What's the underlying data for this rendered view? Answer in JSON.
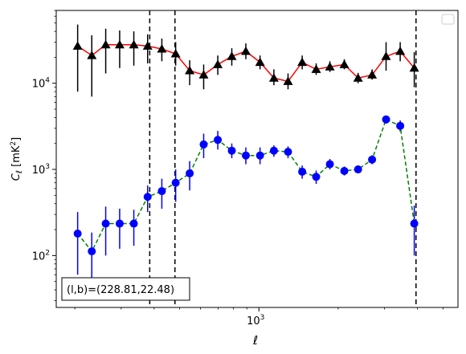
{
  "chart_data": {
    "type": "scatter",
    "xlabel": "ℓ",
    "ylabel_main": "C",
    "ylabel_sub": "ℓ",
    "ylabel_unit_pre": "[mK",
    "ylabel_unit_sup": "2",
    "ylabel_unit_post": "]",
    "xscale": "log",
    "yscale": "log",
    "xlim": [
      170,
      5700
    ],
    "ylim": [
      25,
      70000
    ],
    "xticks": [
      {
        "value": 1000,
        "base": "10",
        "exp": "3"
      }
    ],
    "yticks": [
      {
        "value": 100,
        "base": "10",
        "exp": "2"
      },
      {
        "value": 1000,
        "base": "10",
        "exp": "3"
      },
      {
        "value": 10000,
        "base": "10",
        "exp": "4"
      }
    ],
    "vlines": [
      385,
      480,
      3950
    ],
    "annotation": "(l,b)=(228.81,22.48)",
    "legend_location": "top-right",
    "series": [
      {
        "marker": "triangle",
        "marker_color": "#000000",
        "line_color": "#ff0000",
        "line_style": "solid",
        "errorbar_color": "#000000",
        "points": [
          {
            "x": 205,
            "y": 27000,
            "lo": 8000,
            "hi": 48000
          },
          {
            "x": 232,
            "y": 21000,
            "lo": 7000,
            "hi": 36000
          },
          {
            "x": 262,
            "y": 28000,
            "lo": 13000,
            "hi": 43000
          },
          {
            "x": 296,
            "y": 28000,
            "lo": 15000,
            "hi": 41000
          },
          {
            "x": 335,
            "y": 28000,
            "lo": 16000,
            "hi": 40000
          },
          {
            "x": 378,
            "y": 27000,
            "lo": 17000,
            "hi": 37000
          },
          {
            "x": 428,
            "y": 25000,
            "lo": 18000,
            "hi": 33000
          },
          {
            "x": 483,
            "y": 22000,
            "lo": 16000,
            "hi": 30000
          },
          {
            "x": 546,
            "y": 14000,
            "lo": 9500,
            "hi": 18500
          },
          {
            "x": 617,
            "y": 12500,
            "lo": 8500,
            "hi": 16500
          },
          {
            "x": 698,
            "y": 16500,
            "lo": 12500,
            "hi": 21000
          },
          {
            "x": 789,
            "y": 20500,
            "lo": 16000,
            "hi": 25500
          },
          {
            "x": 892,
            "y": 23500,
            "lo": 19000,
            "hi": 29000
          },
          {
            "x": 1010,
            "y": 17500,
            "lo": 14500,
            "hi": 21000
          },
          {
            "x": 1140,
            "y": 11500,
            "lo": 9500,
            "hi": 14500
          },
          {
            "x": 1290,
            "y": 10500,
            "lo": 8500,
            "hi": 13000
          },
          {
            "x": 1460,
            "y": 17500,
            "lo": 14500,
            "hi": 21000
          },
          {
            "x": 1650,
            "y": 14500,
            "lo": 12500,
            "hi": 17000
          },
          {
            "x": 1860,
            "y": 15500,
            "lo": 13500,
            "hi": 18000
          },
          {
            "x": 2110,
            "y": 16500,
            "lo": 14500,
            "hi": 19000
          },
          {
            "x": 2380,
            "y": 11500,
            "lo": 10000,
            "hi": 13200
          },
          {
            "x": 2690,
            "y": 12500,
            "lo": 11000,
            "hi": 14500
          },
          {
            "x": 3040,
            "y": 20500,
            "lo": 14000,
            "hi": 30000
          },
          {
            "x": 3440,
            "y": 23500,
            "lo": 18000,
            "hi": 30000
          },
          {
            "x": 3890,
            "y": 15000,
            "lo": 9000,
            "hi": 23000
          }
        ]
      },
      {
        "marker": "circle",
        "marker_color": "#0000ff",
        "line_color": "#008000",
        "line_style": "dashed",
        "errorbar_color": "#0000ff",
        "points": [
          {
            "x": 205,
            "y": 180,
            "lo": 60,
            "hi": 320
          },
          {
            "x": 232,
            "y": 112,
            "lo": 40,
            "hi": 185
          },
          {
            "x": 262,
            "y": 235,
            "lo": 100,
            "hi": 370
          },
          {
            "x": 296,
            "y": 235,
            "lo": 120,
            "hi": 350
          },
          {
            "x": 335,
            "y": 235,
            "lo": 130,
            "hi": 340
          },
          {
            "x": 378,
            "y": 480,
            "lo": 320,
            "hi": 650
          },
          {
            "x": 428,
            "y": 560,
            "lo": 350,
            "hi": 780
          },
          {
            "x": 483,
            "y": 700,
            "lo": 420,
            "hi": 1000
          },
          {
            "x": 546,
            "y": 900,
            "lo": 570,
            "hi": 1250
          },
          {
            "x": 617,
            "y": 1950,
            "lo": 1350,
            "hi": 2600
          },
          {
            "x": 698,
            "y": 2200,
            "lo": 1700,
            "hi": 2800
          },
          {
            "x": 789,
            "y": 1650,
            "lo": 1350,
            "hi": 2000
          },
          {
            "x": 892,
            "y": 1450,
            "lo": 1150,
            "hi": 1800
          },
          {
            "x": 1010,
            "y": 1450,
            "lo": 1150,
            "hi": 1800
          },
          {
            "x": 1140,
            "y": 1650,
            "lo": 1400,
            "hi": 1900
          },
          {
            "x": 1290,
            "y": 1600,
            "lo": 1350,
            "hi": 1850
          },
          {
            "x": 1460,
            "y": 940,
            "lo": 780,
            "hi": 1110
          },
          {
            "x": 1650,
            "y": 820,
            "lo": 680,
            "hi": 970
          },
          {
            "x": 1860,
            "y": 1150,
            "lo": 1000,
            "hi": 1320
          },
          {
            "x": 2110,
            "y": 960,
            "lo": 850,
            "hi": 1080
          },
          {
            "x": 2380,
            "y": 1000,
            "lo": 910,
            "hi": 1100
          },
          {
            "x": 2690,
            "y": 1300,
            "lo": 1150,
            "hi": 1460
          },
          {
            "x": 3040,
            "y": 3800,
            "lo": 3400,
            "hi": 4200
          },
          {
            "x": 3440,
            "y": 3200,
            "lo": 2750,
            "hi": 3700
          },
          {
            "x": 3890,
            "y": 235,
            "lo": 100,
            "hi": 380
          }
        ]
      }
    ]
  }
}
